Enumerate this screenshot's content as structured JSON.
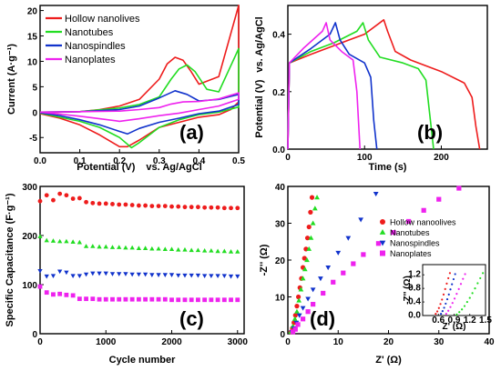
{
  "chart_data": [
    {
      "id": "a",
      "type": "line",
      "panel_label": "(a)",
      "xlabel_main": "Potential (V)",
      "xlabel_ref": "vs. Ag/AgCl",
      "ylabel": "Current (A·g⁻¹)",
      "xlim": [
        0.0,
        0.5
      ],
      "ylim": [
        -8,
        21
      ],
      "xticks": [
        0.0,
        0.1,
        0.2,
        0.3,
        0.4,
        0.5
      ],
      "yticks": [
        -5,
        0,
        5,
        10,
        15,
        20
      ],
      "legend_position": "top-left",
      "series": [
        {
          "name": "Hollow nanolives",
          "color": "#ee1c1c",
          "x": [
            0.0,
            0.05,
            0.1,
            0.15,
            0.2,
            0.25,
            0.3,
            0.32,
            0.34,
            0.36,
            0.38,
            0.4,
            0.45,
            0.5,
            0.5,
            0.48,
            0.45,
            0.4,
            0.35,
            0.3,
            0.25,
            0.22,
            0.2,
            0.15,
            0.1,
            0.05,
            0.0
          ],
          "y": [
            -0.1,
            0,
            0.1,
            0.5,
            1.2,
            2.5,
            6.5,
            9.5,
            10.8,
            10.2,
            8,
            5.5,
            7,
            21,
            2,
            0.5,
            -0.5,
            -1,
            -2,
            -3,
            -5.5,
            -6.8,
            -6.8,
            -4.5,
            -2.5,
            -1.2,
            -0.3
          ]
        },
        {
          "name": "Nanotubes",
          "color": "#22dd22",
          "x": [
            0.0,
            0.1,
            0.2,
            0.25,
            0.3,
            0.33,
            0.35,
            0.37,
            0.39,
            0.42,
            0.45,
            0.5,
            0.5,
            0.45,
            0.4,
            0.35,
            0.3,
            0.25,
            0.23,
            0.2,
            0.15,
            0.1,
            0.05,
            0.0
          ],
          "y": [
            0,
            0.1,
            0.8,
            1.5,
            3,
            6.5,
            8.5,
            9.3,
            8,
            4.5,
            4,
            12.5,
            1,
            0,
            -0.5,
            -1.5,
            -3,
            -6,
            -7,
            -5,
            -3,
            -1.8,
            -1,
            -0.2
          ]
        },
        {
          "name": "Nanospindles",
          "color": "#1133cc",
          "x": [
            0.0,
            0.1,
            0.2,
            0.25,
            0.3,
            0.34,
            0.37,
            0.4,
            0.45,
            0.5,
            0.5,
            0.45,
            0.4,
            0.35,
            0.3,
            0.25,
            0.22,
            0.2,
            0.15,
            0.1,
            0.05,
            0.0
          ],
          "y": [
            0,
            0.1,
            0.5,
            1.2,
            2.8,
            4.2,
            3.5,
            2.2,
            2.5,
            3.5,
            1.5,
            0.2,
            -0.3,
            -1.2,
            -2,
            -3.2,
            -4.3,
            -3.8,
            -2.5,
            -1.5,
            -0.7,
            -0.1
          ]
        },
        {
          "name": "Nanoplates",
          "color": "#ee22ee",
          "x": [
            0.0,
            0.1,
            0.2,
            0.25,
            0.3,
            0.33,
            0.36,
            0.4,
            0.45,
            0.5,
            0.5,
            0.45,
            0.4,
            0.35,
            0.3,
            0.25,
            0.2,
            0.15,
            0.1,
            0.05,
            0.0
          ],
          "y": [
            0,
            0.1,
            0.2,
            0.5,
            0.9,
            1.6,
            2,
            2.1,
            2.6,
            3.8,
            2.5,
            1.2,
            0.5,
            -0.2,
            -0.7,
            -1.3,
            -1.8,
            -1.3,
            -0.8,
            -0.4,
            0
          ]
        }
      ]
    },
    {
      "id": "b",
      "type": "line",
      "panel_label": "(b)",
      "xlabel": "Time (s)",
      "ylabel_main": "Potential (V)",
      "ylabel_ref": "vs. Ag/AgCl",
      "xlim": [
        0,
        260
      ],
      "ylim": [
        0,
        0.5
      ],
      "xticks": [
        0,
        100,
        200
      ],
      "yticks": [
        0.0,
        0.2,
        0.4
      ],
      "series": [
        {
          "name": "Hollow nanolives",
          "color": "#ee1c1c",
          "x": [
            0,
            2,
            30,
            60,
            100,
            125,
            130,
            140,
            160,
            180,
            200,
            230,
            240,
            245,
            250
          ],
          "y": [
            0,
            0.3,
            0.33,
            0.36,
            0.4,
            0.45,
            0.41,
            0.34,
            0.31,
            0.29,
            0.27,
            0.23,
            0.18,
            0.08,
            0
          ]
        },
        {
          "name": "Nanotubes",
          "color": "#22dd22",
          "x": [
            0,
            2,
            30,
            60,
            90,
            98,
            105,
            120,
            150,
            170,
            180,
            185,
            190
          ],
          "y": [
            0,
            0.3,
            0.34,
            0.37,
            0.41,
            0.44,
            0.38,
            0.32,
            0.3,
            0.28,
            0.24,
            0.12,
            0
          ]
        },
        {
          "name": "Nanospindles",
          "color": "#1133cc",
          "x": [
            0,
            2,
            30,
            55,
            62,
            68,
            80,
            100,
            108,
            112,
            116
          ],
          "y": [
            0,
            0.3,
            0.35,
            0.4,
            0.44,
            0.38,
            0.33,
            0.3,
            0.25,
            0.1,
            0
          ]
        },
        {
          "name": "Nanoplates",
          "color": "#ee22ee",
          "x": [
            0,
            2,
            20,
            45,
            50,
            55,
            70,
            85,
            90,
            94
          ],
          "y": [
            0,
            0.3,
            0.35,
            0.41,
            0.44,
            0.38,
            0.34,
            0.31,
            0.2,
            0
          ]
        }
      ]
    },
    {
      "id": "c",
      "type": "scatter",
      "panel_label": "(c)",
      "xlabel": "Cycle number",
      "ylabel": "Specific Capacitance (F·g⁻¹)",
      "xlim": [
        0,
        3100
      ],
      "ylim": [
        0,
        300
      ],
      "xticks": [
        0,
        1000,
        2000,
        3000
      ],
      "yticks": [
        0,
        100,
        200,
        300
      ],
      "series": [
        {
          "name": "Hollow nanolives",
          "color": "#ee1c1c",
          "marker": "circle",
          "x": [
            0,
            100,
            200,
            300,
            400,
            500,
            600,
            700,
            800,
            900,
            1000,
            1100,
            1200,
            1300,
            1400,
            1500,
            1600,
            1700,
            1800,
            1900,
            2000,
            2100,
            2200,
            2300,
            2400,
            2500,
            2600,
            2700,
            2800,
            2900,
            3000
          ],
          "y": [
            270,
            282,
            272,
            285,
            282,
            275,
            276,
            268,
            266,
            265,
            265,
            264,
            263,
            263,
            262,
            261,
            261,
            260,
            260,
            260,
            259,
            259,
            258,
            258,
            258,
            257,
            257,
            257,
            256,
            256,
            256
          ]
        },
        {
          "name": "Nanotubes",
          "color": "#22dd22",
          "marker": "triangle-up",
          "x": [
            0,
            100,
            200,
            300,
            400,
            500,
            600,
            700,
            800,
            900,
            1000,
            1100,
            1200,
            1300,
            1400,
            1500,
            1600,
            1700,
            1800,
            1900,
            2000,
            2100,
            2200,
            2300,
            2400,
            2500,
            2600,
            2700,
            2800,
            2900,
            3000
          ],
          "y": [
            198,
            190,
            189,
            188,
            188,
            187,
            186,
            178,
            178,
            177,
            177,
            176,
            176,
            175,
            175,
            174,
            174,
            173,
            173,
            172,
            172,
            171,
            171,
            170,
            170,
            169,
            169,
            168,
            168,
            167,
            167
          ]
        },
        {
          "name": "Nanospindles",
          "color": "#1133cc",
          "marker": "triangle-down",
          "x": [
            0,
            100,
            200,
            300,
            400,
            500,
            600,
            700,
            800,
            900,
            1000,
            1100,
            1200,
            1300,
            1400,
            1500,
            1600,
            1700,
            1800,
            1900,
            2000,
            2100,
            2200,
            2300,
            2400,
            2500,
            2600,
            2700,
            2800,
            2900,
            3000
          ],
          "y": [
            128,
            117,
            118,
            127,
            125,
            118,
            118,
            121,
            123,
            123,
            123,
            122,
            122,
            122,
            121,
            121,
            121,
            120,
            120,
            120,
            120,
            119,
            119,
            119,
            119,
            118,
            118,
            118,
            118,
            117,
            117
          ]
        },
        {
          "name": "Nanoplates",
          "color": "#ee22ee",
          "marker": "square",
          "x": [
            0,
            100,
            200,
            300,
            400,
            500,
            600,
            700,
            800,
            900,
            1000,
            1100,
            1200,
            1300,
            1400,
            1500,
            1600,
            1700,
            1800,
            1900,
            2000,
            2100,
            2200,
            2300,
            2400,
            2500,
            2600,
            2700,
            2800,
            2900,
            3000
          ],
          "y": [
            96,
            84,
            80,
            81,
            79,
            78,
            71,
            71,
            71,
            70,
            70,
            70,
            70,
            70,
            70,
            70,
            70,
            70,
            70,
            70,
            69,
            69,
            69,
            69,
            69,
            69,
            69,
            69,
            69,
            69,
            69
          ]
        }
      ]
    },
    {
      "id": "d",
      "type": "scatter",
      "panel_label": "(d)",
      "xlabel": "Z' (Ω)",
      "ylabel": "-Z'' (Ω)",
      "xlim": [
        0,
        40
      ],
      "ylim": [
        0,
        40
      ],
      "xticks": [
        0,
        10,
        20,
        30,
        40
      ],
      "yticks": [
        0,
        10,
        20,
        30,
        40
      ],
      "legend_position": "center-right",
      "series": [
        {
          "name": "Hollow nanoolives",
          "color": "#ee1c1c",
          "marker": "circle",
          "x": [
            0.6,
            0.9,
            1.2,
            1.5,
            1.8,
            2.1,
            2.4,
            2.7,
            3.0,
            3.3,
            3.6,
            3.9,
            4.2,
            4.5,
            4.8
          ],
          "y": [
            0.5,
            1.5,
            3,
            5,
            7.5,
            10,
            12.5,
            15,
            18,
            20.5,
            23,
            26,
            29,
            33,
            37
          ]
        },
        {
          "name": "Nanotubes",
          "color": "#22dd22",
          "marker": "triangle-up",
          "x": [
            0.6,
            1.0,
            1.4,
            1.8,
            2.2,
            2.6,
            3.0,
            3.4,
            3.8,
            4.2,
            4.6,
            5.0,
            5.4,
            5.8
          ],
          "y": [
            0.5,
            2,
            4,
            6,
            9,
            12,
            15,
            17.5,
            20,
            23,
            26,
            30,
            34,
            37
          ]
        },
        {
          "name": "Nanospindles",
          "color": "#1133cc",
          "marker": "triangle-down",
          "x": [
            0.8,
            1.2,
            1.7,
            2.3,
            3.0,
            4.0,
            5.0,
            6.5,
            8.0,
            10,
            12,
            14.5,
            17.5
          ],
          "y": [
            0.5,
            1.5,
            3,
            5,
            7,
            9.5,
            12,
            15,
            18,
            22,
            26,
            31,
            38
          ]
        },
        {
          "name": "Nanoplates",
          "color": "#ee22ee",
          "marker": "square",
          "x": [
            1,
            1.5,
            2,
            3,
            4,
            5,
            7,
            9,
            11,
            13,
            15,
            18,
            21,
            24,
            27,
            30,
            34
          ],
          "y": [
            0.5,
            1.2,
            2.5,
            4,
            6,
            8,
            11,
            14,
            16.5,
            19,
            21.5,
            24.5,
            27.5,
            30.5,
            33.5,
            36.5,
            39.5
          ]
        }
      ],
      "inset": {
        "xlim": [
          0.3,
          1.5
        ],
        "ylim": [
          0,
          1.5
        ],
        "xlabel": "Z' (Ω)",
        "ylabel": "-Z'' (Ω)",
        "xticks": [
          0.6,
          0.9,
          1.2,
          1.5
        ],
        "yticks": [
          0.0,
          0.4,
          0.8,
          1.2
        ],
        "series": [
          {
            "name": "Hollow nanoolives",
            "color": "#ee1c1c",
            "x": [
              0.55,
              0.58,
              0.61,
              0.64,
              0.67,
              0.7,
              0.73,
              0.76,
              0.79,
              0.82
            ],
            "y": [
              0.05,
              0.12,
              0.22,
              0.34,
              0.47,
              0.62,
              0.78,
              0.94,
              1.1,
              1.25
            ]
          },
          {
            "name": "Nanotubes",
            "color": "#22dd22",
            "x": [
              0.95,
              1.0,
              1.05,
              1.1,
              1.15,
              1.2,
              1.25,
              1.3,
              1.35,
              1.4,
              1.45
            ],
            "y": [
              0.03,
              0.1,
              0.18,
              0.28,
              0.4,
              0.52,
              0.66,
              0.8,
              0.95,
              1.1,
              1.25
            ]
          },
          {
            "name": "Nanospindles",
            "color": "#1133cc",
            "x": [
              0.65,
              0.68,
              0.71,
              0.74,
              0.77,
              0.8,
              0.83,
              0.86,
              0.89,
              0.92
            ],
            "y": [
              0.05,
              0.13,
              0.23,
              0.35,
              0.48,
              0.62,
              0.77,
              0.92,
              1.07,
              1.22
            ]
          },
          {
            "name": "Nanoplates",
            "color": "#ee22ee",
            "x": [
              0.75,
              0.79,
              0.83,
              0.87,
              0.91,
              0.95,
              0.99,
              1.03,
              1.07,
              1.11
            ],
            "y": [
              0.05,
              0.14,
              0.25,
              0.37,
              0.5,
              0.64,
              0.78,
              0.93,
              1.08,
              1.22
            ]
          }
        ]
      }
    }
  ]
}
